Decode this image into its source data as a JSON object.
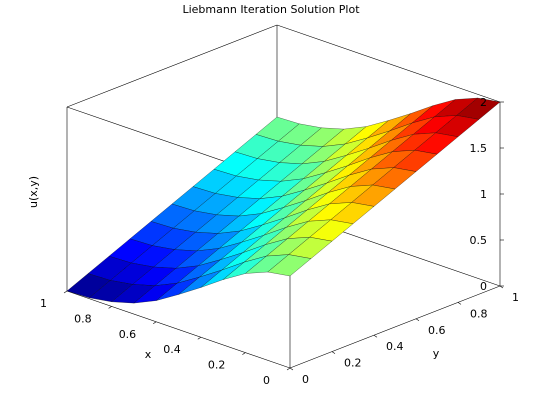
{
  "chart_data": {
    "type": "surface",
    "title": "Liebmann Iteration Solution Plot",
    "xlabel": "x",
    "ylabel": "y",
    "zlabel": "u(x,y)",
    "xlim": [
      0,
      1
    ],
    "ylim": [
      0,
      1
    ],
    "zlim": [
      0,
      2
    ],
    "x_ticks": [
      0,
      0.2,
      0.4,
      0.6,
      0.8,
      1
    ],
    "x_tick_labels": [
      "0",
      "0.2",
      "0.4",
      "0.6",
      "0.8",
      "1"
    ],
    "y_ticks": [
      0,
      0.2,
      0.4,
      0.6,
      0.8,
      1
    ],
    "y_tick_labels": [
      "0",
      "0.2",
      "0.4",
      "0.6",
      "0.8",
      "1"
    ],
    "z_ticks": [
      0,
      0.5,
      1,
      1.5,
      2
    ],
    "z_tick_labels": [
      "0",
      "0.5",
      "1",
      "1.5",
      "2"
    ],
    "grid": false,
    "colormap": "jet",
    "x": [
      0,
      0.1,
      0.2,
      0.3,
      0.4,
      0.5,
      0.6,
      0.7,
      0.8,
      0.9,
      1
    ],
    "y": [
      0,
      0.1,
      0.2,
      0.3,
      0.4,
      0.5,
      0.6,
      0.7,
      0.8,
      0.9,
      1
    ],
    "z_rows_by_y": [
      [
        1.0,
        0.96,
        0.86,
        0.71,
        0.54,
        0.38,
        0.23,
        0.12,
        0.05,
        0.01,
        0.0
      ],
      [
        1.1,
        1.06,
        0.96,
        0.81,
        0.64,
        0.48,
        0.33,
        0.22,
        0.15,
        0.11,
        0.1
      ],
      [
        1.2,
        1.16,
        1.06,
        0.91,
        0.74,
        0.58,
        0.43,
        0.32,
        0.25,
        0.21,
        0.2
      ],
      [
        1.3,
        1.26,
        1.16,
        1.01,
        0.84,
        0.68,
        0.53,
        0.42,
        0.35,
        0.31,
        0.3
      ],
      [
        1.4,
        1.36,
        1.26,
        1.11,
        0.94,
        0.78,
        0.63,
        0.52,
        0.45,
        0.41,
        0.4
      ],
      [
        1.5,
        1.46,
        1.36,
        1.21,
        1.04,
        0.88,
        0.73,
        0.62,
        0.55,
        0.51,
        0.5
      ],
      [
        1.6,
        1.56,
        1.46,
        1.31,
        1.14,
        0.98,
        0.83,
        0.72,
        0.65,
        0.61,
        0.6
      ],
      [
        1.7,
        1.66,
        1.56,
        1.41,
        1.24,
        1.08,
        0.93,
        0.82,
        0.75,
        0.71,
        0.7
      ],
      [
        1.8,
        1.76,
        1.66,
        1.51,
        1.34,
        1.18,
        1.03,
        0.92,
        0.85,
        0.81,
        0.8
      ],
      [
        1.9,
        1.86,
        1.76,
        1.61,
        1.44,
        1.28,
        1.13,
        1.02,
        0.95,
        0.91,
        0.9
      ],
      [
        2.0,
        1.96,
        1.86,
        1.71,
        1.54,
        1.38,
        1.23,
        1.12,
        1.05,
        1.01,
        1.0
      ]
    ]
  }
}
